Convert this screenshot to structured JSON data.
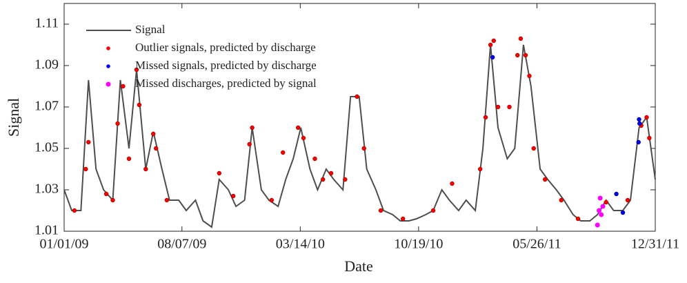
{
  "chart_data": {
    "type": "line",
    "xlabel": "Date",
    "ylabel": "Signal",
    "xlim": [
      "2009-01-01",
      "2011-12-31"
    ],
    "xticks": [
      {
        "value": "2009-01-01",
        "label": "01/01/09"
      },
      {
        "value": "2009-08-07",
        "label": "08/07/09"
      },
      {
        "value": "2010-03-14",
        "label": "03/14/10"
      },
      {
        "value": "2010-10-19",
        "label": "10/19/10"
      },
      {
        "value": "2011-05-26",
        "label": "05/26/11"
      },
      {
        "value": "2011-12-31",
        "label": "12/31/11"
      }
    ],
    "ylim": [
      1.01,
      1.12
    ],
    "yticks": [
      1.01,
      1.03,
      1.05,
      1.07,
      1.09,
      1.11
    ],
    "grid": false,
    "legend": "upper left",
    "series": [
      {
        "name": "Signal",
        "type": "line",
        "color": "#4d4d4d",
        "x": [
          "2009-01-01",
          "2009-01-15",
          "2009-02-01",
          "2009-02-15",
          "2009-03-01",
          "2009-03-15",
          "2009-04-01",
          "2009-04-15",
          "2009-05-01",
          "2009-05-15",
          "2009-06-01",
          "2009-06-15",
          "2009-07-01",
          "2009-07-15",
          "2009-08-01",
          "2009-08-15",
          "2009-09-01",
          "2009-09-15",
          "2009-10-01",
          "2009-10-15",
          "2009-11-01",
          "2009-11-15",
          "2009-12-01",
          "2009-12-15",
          "2010-01-01",
          "2010-01-15",
          "2010-02-01",
          "2010-02-15",
          "2010-03-01",
          "2010-03-15",
          "2010-04-01",
          "2010-04-15",
          "2010-05-01",
          "2010-05-15",
          "2010-06-01",
          "2010-06-15",
          "2010-07-01",
          "2010-07-15",
          "2010-08-01",
          "2010-08-15",
          "2010-09-01",
          "2010-09-15",
          "2010-10-01",
          "2010-10-15",
          "2010-11-01",
          "2010-11-15",
          "2010-12-01",
          "2010-12-15",
          "2011-01-01",
          "2011-01-15",
          "2011-02-01",
          "2011-02-15",
          "2011-03-01",
          "2011-03-15",
          "2011-04-01",
          "2011-04-15",
          "2011-05-01",
          "2011-05-15",
          "2011-06-01",
          "2011-06-15",
          "2011-07-01",
          "2011-07-15",
          "2011-08-01",
          "2011-08-15",
          "2011-09-01",
          "2011-09-15",
          "2011-10-01",
          "2011-10-15",
          "2011-11-01",
          "2011-11-15",
          "2011-12-01",
          "2011-12-15",
          "2011-12-31"
        ],
        "values": [
          1.03,
          1.02,
          1.02,
          1.083,
          1.04,
          1.03,
          1.025,
          1.083,
          1.05,
          1.088,
          1.04,
          1.058,
          1.04,
          1.025,
          1.025,
          1.02,
          1.025,
          1.015,
          1.012,
          1.035,
          1.03,
          1.022,
          1.025,
          1.06,
          1.03,
          1.025,
          1.022,
          1.035,
          1.045,
          1.06,
          1.04,
          1.03,
          1.04,
          1.035,
          1.03,
          1.075,
          1.075,
          1.04,
          1.03,
          1.02,
          1.018,
          1.015,
          1.015,
          1.016,
          1.018,
          1.02,
          1.03,
          1.025,
          1.02,
          1.025,
          1.02,
          1.05,
          1.1,
          1.06,
          1.045,
          1.05,
          1.1,
          1.08,
          1.04,
          1.035,
          1.03,
          1.025,
          1.018,
          1.015,
          1.015,
          1.018,
          1.025,
          1.02,
          1.02,
          1.025,
          1.06,
          1.065,
          1.035
        ]
      },
      {
        "name": "Outlier signals, predicted by discharge",
        "type": "scatter",
        "color": "#ff0000",
        "x": [
          "2009-01-20",
          "2009-02-10",
          "2009-02-15",
          "2009-03-20",
          "2009-04-01",
          "2009-04-10",
          "2009-04-20",
          "2009-05-01",
          "2009-05-15",
          "2009-05-20",
          "2009-06-01",
          "2009-06-15",
          "2009-06-20",
          "2009-07-10",
          "2009-10-15",
          "2009-11-10",
          "2009-12-10",
          "2009-12-15",
          "2010-01-20",
          "2010-02-10",
          "2010-03-10",
          "2010-03-20",
          "2010-04-10",
          "2010-04-25",
          "2010-05-10",
          "2010-06-05",
          "2010-06-27",
          "2010-07-10",
          "2010-08-10",
          "2010-09-20",
          "2010-11-15",
          "2010-12-20",
          "2011-02-10",
          "2011-02-20",
          "2011-03-01",
          "2011-03-07",
          "2011-03-15",
          "2011-04-05",
          "2011-04-20",
          "2011-04-26",
          "2011-05-05",
          "2011-05-12",
          "2011-05-20",
          "2011-06-10",
          "2011-07-10",
          "2011-08-10",
          "2011-10-01",
          "2011-11-10",
          "2011-12-05",
          "2011-12-15",
          "2011-12-20"
        ],
        "values": [
          1.02,
          1.04,
          1.053,
          1.028,
          1.025,
          1.062,
          1.08,
          1.045,
          1.088,
          1.071,
          1.04,
          1.057,
          1.05,
          1.025,
          1.038,
          1.027,
          1.052,
          1.06,
          1.025,
          1.048,
          1.06,
          1.055,
          1.045,
          1.035,
          1.038,
          1.035,
          1.075,
          1.05,
          1.02,
          1.016,
          1.02,
          1.033,
          1.04,
          1.065,
          1.1,
          1.102,
          1.07,
          1.07,
          1.095,
          1.103,
          1.095,
          1.085,
          1.05,
          1.035,
          1.025,
          1.016,
          1.024,
          1.025,
          1.061,
          1.065,
          1.055
        ]
      },
      {
        "name": "Missed signals, predicted by discharge",
        "type": "scatter",
        "color": "#0000ff",
        "x": [
          "2011-03-05",
          "2011-10-20",
          "2011-11-01",
          "2011-11-30",
          "2011-12-01",
          "2011-12-02"
        ],
        "values": [
          1.094,
          1.028,
          1.019,
          1.053,
          1.064,
          1.062
        ]
      },
      {
        "name": "Missed discharges, predicted by signal",
        "type": "scatter",
        "color": "#ff00ff",
        "x": [
          "2011-09-15",
          "2011-09-18",
          "2011-09-20",
          "2011-09-22",
          "2011-09-25"
        ],
        "values": [
          1.013,
          1.02,
          1.026,
          1.018,
          1.022
        ]
      }
    ]
  }
}
